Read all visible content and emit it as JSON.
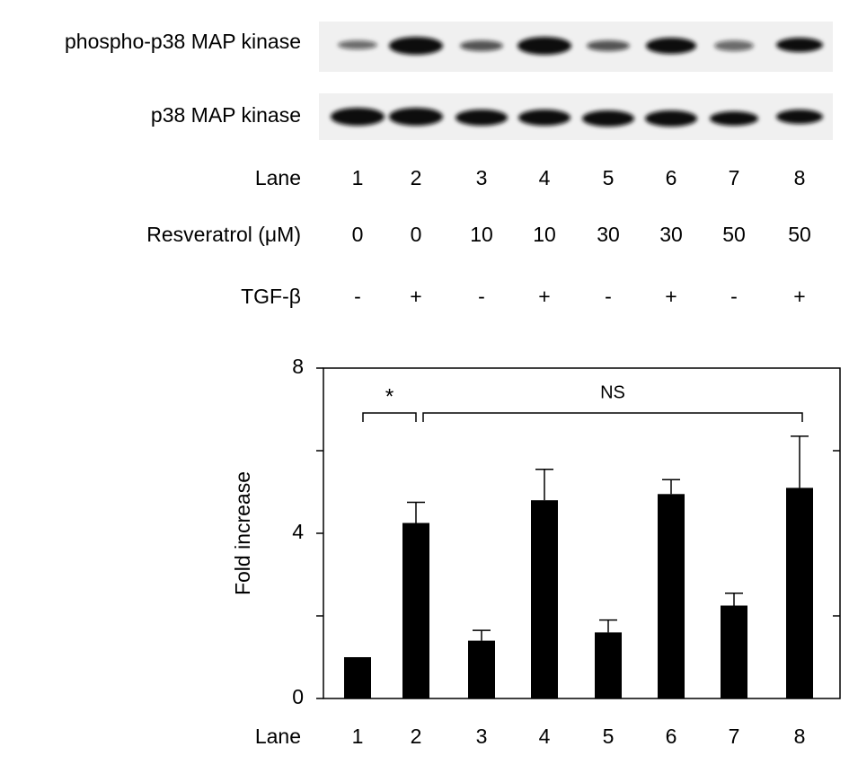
{
  "blot": {
    "rows": [
      "phospho-p38 MAP kinase",
      "p38 MAP kinase"
    ]
  },
  "table": {
    "rows": [
      {
        "label": "Lane",
        "cells": [
          1,
          2,
          3,
          4,
          5,
          6,
          7,
          8
        ]
      },
      {
        "label": "Resveratrol (μM)",
        "cells": [
          0,
          0,
          10,
          10,
          30,
          30,
          50,
          50
        ]
      },
      {
        "label": "TGF-β",
        "cells": [
          "-",
          "+",
          "-",
          "+",
          "-",
          "+",
          "-",
          "+"
        ]
      }
    ]
  },
  "chart_data": {
    "type": "bar",
    "xlabel": "Lane",
    "ylabel": "Fold increase",
    "categories": [
      "1",
      "2",
      "3",
      "4",
      "5",
      "6",
      "7",
      "8"
    ],
    "values": [
      1.0,
      4.25,
      1.4,
      4.8,
      1.6,
      4.95,
      2.25,
      5.1
    ],
    "errors": [
      null,
      0.5,
      0.25,
      0.75,
      0.3,
      0.35,
      0.3,
      1.25
    ],
    "color": "#000000",
    "ylim": [
      0,
      8
    ],
    "yticks": [
      0,
      4,
      8
    ],
    "minor_yticks": [
      2,
      6
    ],
    "annotations": [
      {
        "text": "*",
        "from": "1",
        "to": "2"
      },
      {
        "text": "NS",
        "from": "2",
        "to": "8"
      }
    ]
  }
}
